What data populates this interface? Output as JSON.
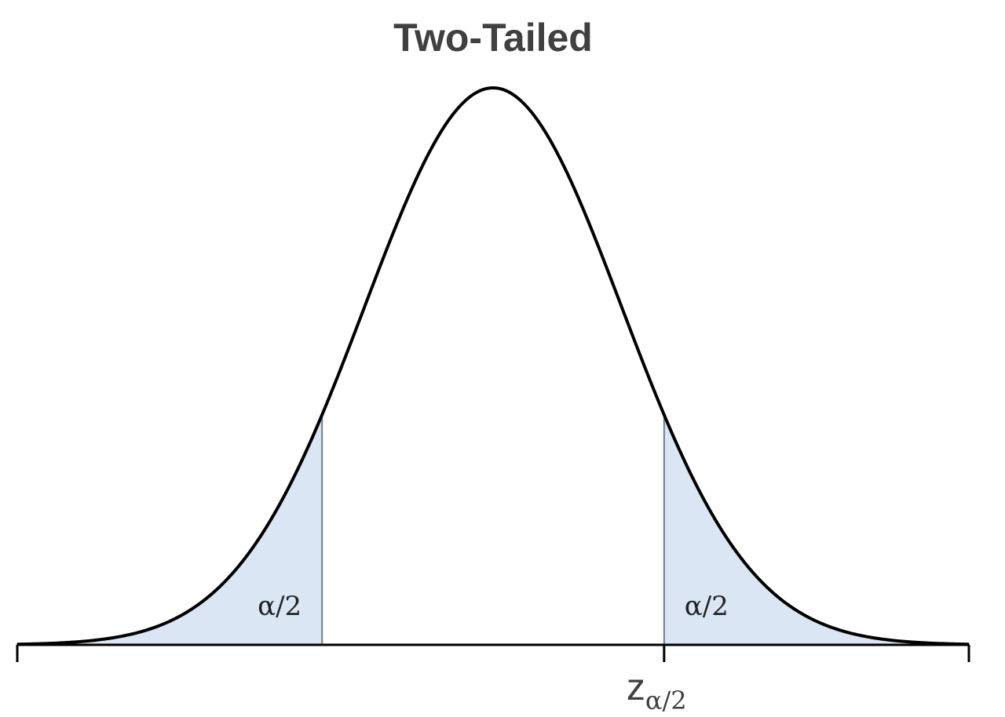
{
  "chart_data": {
    "type": "area",
    "title": "Two-Tailed",
    "distribution": "standard normal",
    "xlim": [
      -3.7,
      3.7
    ],
    "critical_value": 1.33,
    "shaded_regions": [
      {
        "from": -3.7,
        "to": -1.33,
        "label": "α/2"
      },
      {
        "from": 1.33,
        "to": 3.7,
        "label": "α/2"
      }
    ],
    "annotations": {
      "critical_label_main": "z",
      "critical_label_sub": "α/2"
    },
    "grid": false,
    "legend": "none"
  },
  "colors": {
    "curve": "#000000",
    "shade_fill": "#dae6f3",
    "shade_stroke": "#6e7e8e",
    "title": "#404040"
  }
}
